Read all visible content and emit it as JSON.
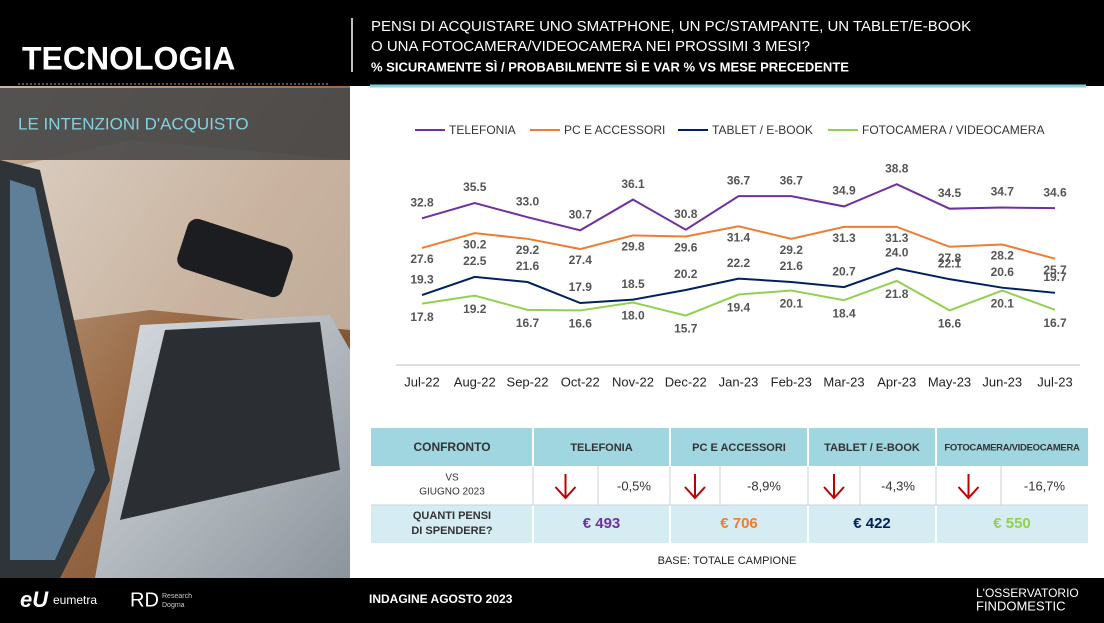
{
  "header": {
    "section": "TECNOLOGIA",
    "question_lines": [
      "PENSI DI ACQUISTARE UNO SMATPHONE, UN PC/STAMPANTE, UN TABLET/E-BOOK",
      "O UNA FOTOCAMERA/VIDEOCAMERA NEI PROSSIMI 3 MESI?"
    ],
    "measure": "% SICURAMENTE SÌ / PROBABILMENTE SÌ E VAR % VS MESE PRECEDENTE",
    "subsection": "LE INTENZIONI D'ACQUISTO"
  },
  "chart_data": {
    "type": "line",
    "categories": [
      "Jul-22",
      "Aug-22",
      "Sep-22",
      "Oct-22",
      "Nov-22",
      "Dec-22",
      "Jan-23",
      "Feb-23",
      "Mar-23",
      "Apr-23",
      "May-23",
      "Jun-23",
      "Jul-23"
    ],
    "ylim": [
      7,
      45
    ],
    "legend": "top",
    "series": [
      {
        "name": "TELEFONIA",
        "color": "#7030a0",
        "values": [
          32.8,
          35.5,
          33.0,
          30.7,
          36.1,
          30.8,
          36.7,
          36.7,
          34.9,
          38.8,
          34.5,
          34.7,
          34.6
        ],
        "value_labels": [
          "32.8",
          "35.5",
          "33.0",
          "30.7",
          "36.1",
          "30.8",
          "36.7",
          "36.7",
          "34.9",
          "38.8",
          "34.5",
          "34.7",
          "34.6"
        ]
      },
      {
        "name": "PC E ACCESSORI",
        "color": "#ed7d31",
        "values": [
          27.6,
          30.2,
          29.2,
          27.4,
          29.8,
          29.6,
          31.4,
          29.2,
          31.3,
          31.3,
          27.8,
          28.2,
          25.7
        ],
        "value_labels": [
          "27.6",
          "30.2",
          "29.2",
          "27.4",
          "29.8",
          "29.6",
          "31.4",
          "29.2",
          "31.3",
          "31.3",
          "27.8",
          "28.2",
          "25.7"
        ]
      },
      {
        "name": "TABLET / E-BOOK",
        "color": "#002060",
        "values": [
          19.3,
          22.5,
          21.6,
          17.9,
          18.5,
          20.2,
          22.2,
          21.6,
          20.7,
          24.0,
          22.1,
          20.6,
          19.7
        ],
        "value_labels": [
          "19.3",
          "22.5",
          "21.6",
          "17.9",
          "18.5",
          "20.2",
          "22.2",
          "21.6",
          "20.7",
          "24.0",
          "22.1",
          "20.6",
          "19.7"
        ]
      },
      {
        "name": "FOTOCAMERA / VIDEOCAMERA",
        "color": "#92d050",
        "values": [
          17.8,
          19.2,
          16.7,
          16.6,
          18.0,
          15.7,
          19.4,
          20.1,
          18.4,
          21.8,
          16.6,
          20.1,
          16.7
        ],
        "value_labels": [
          "17.8",
          "19.2",
          "16.7",
          "16.6",
          "18.0",
          "15.7",
          "19.4",
          "20.1",
          "18.4",
          "21.8",
          "16.6",
          "20.1",
          "16.7"
        ]
      }
    ]
  },
  "table": {
    "headers": [
      "CONFRONTO",
      "TELEFONIA",
      "PC E ACCESSORI",
      "TABLET / E-BOOK",
      "FOTOCAMERA/VIDEOCAMERA"
    ],
    "change_label": [
      "VS",
      "GIUGNO 2023"
    ],
    "changes": [
      "-0,5%",
      "-8,9%",
      "-4,3%",
      "-16,7%"
    ],
    "spend_label": [
      "QUANTI PENSI",
      "DI SPENDERE?"
    ],
    "spend": [
      "€ 493",
      "€ 706",
      "€ 422",
      "€ 550"
    ]
  },
  "footer": {
    "base": "BASE: TOTALE CAMPIONE",
    "survey": "INDAGINE AGOSTO  2023",
    "logo1": "eumetra",
    "logo2": [
      "Research",
      "Dogma"
    ],
    "logo3": [
      "L'OSSERVATORIO",
      "FINDOMESTIC"
    ]
  }
}
